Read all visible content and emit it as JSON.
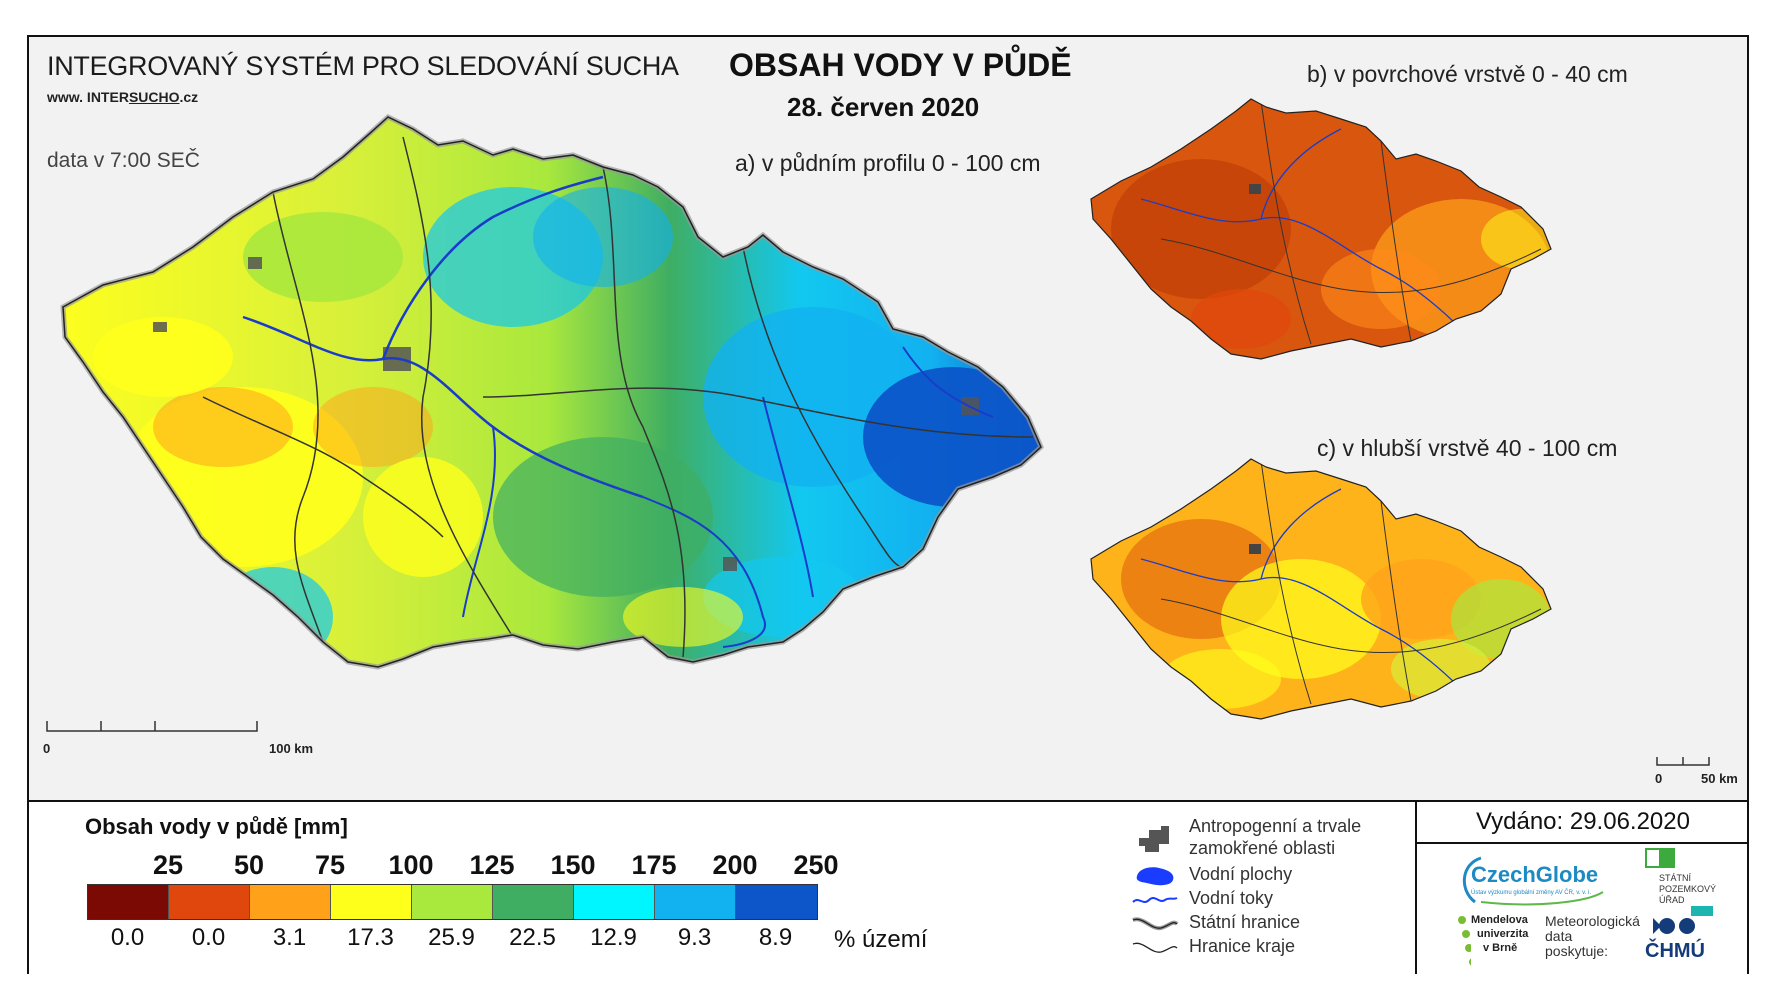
{
  "header": {
    "system_title": "INTEGROVANÝ SYSTÉM PRO SLEDOVÁNÍ SUCHA",
    "website_prefix": "www. INTER",
    "website_mid": "SUCHO",
    "website_suffix": ".cz",
    "data_time": "data v 7:00 SEČ",
    "main_title": "OBSAH VODY V PŮDĚ",
    "date": "28. červen 2020"
  },
  "maps": {
    "a_title": "a) v půdním profilu 0 - 100 cm",
    "b_title": "b) v povrchové vrstvě 0 - 40 cm",
    "c_title": "c) v hlubší vrstvě 40 - 100 cm",
    "a_scale_start": "0",
    "a_scale_end": "100 km",
    "c_scale_start": "0",
    "c_scale_end": "50 km"
  },
  "legend": {
    "title": "Obsah vody v půdě  [mm]",
    "ticks": [
      "25",
      "50",
      "75",
      "100",
      "125",
      "150",
      "175",
      "200",
      "250"
    ],
    "colors": [
      "#7b0a05",
      "#e0470c",
      "#ffa21a",
      "#ffff1c",
      "#a9e83d",
      "#3fae62",
      "#00f6ff",
      "#12b1f0",
      "#0c56c9"
    ],
    "percent_values": [
      "0.0",
      "0.0",
      "3.1",
      "17.3",
      "25.9",
      "22.5",
      "12.9",
      "9.3",
      "8.9"
    ],
    "percent_label": "% území"
  },
  "symbols": {
    "anthropogenic": "Antropogenní a trvale zamokřené oblasti",
    "anthropogenic_line1": "Antropogenní a trvale",
    "anthropogenic_line2": "zamokřené oblasti",
    "water_bodies": "Vodní plochy",
    "water_courses": "Vodní toky",
    "state_border": "Státní hranice",
    "region_border": "Hranice kraje"
  },
  "footer": {
    "issued": "Vydáno: 29.06.2020",
    "czechglobe": "CzechGlobe",
    "czechglobe_sub": "Ústav výzkumu globální změny AV ČR, v. v. i.",
    "spu_line1": "STÁTNÍ",
    "spu_line2": "POZEMKOVÝ",
    "spu_line3": "ÚŘAD",
    "mendel_line1": "Mendelova",
    "mendel_line2": "univerzita",
    "mendel_line3": "v Brně",
    "met_line1": "Meteorologická",
    "met_line2": "data",
    "met_line3": "poskytuje:",
    "chmu": "ČHMÚ"
  }
}
